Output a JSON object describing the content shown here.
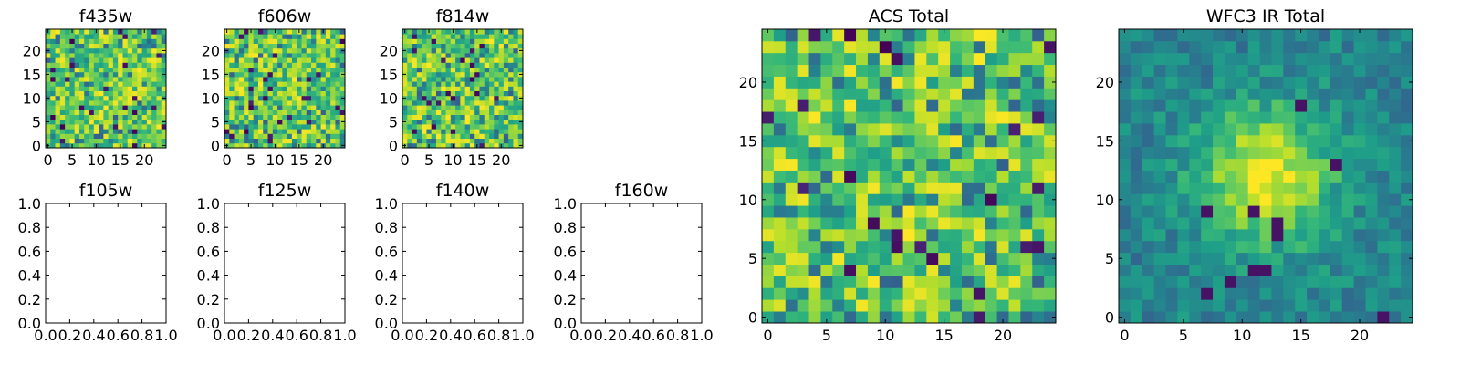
{
  "chart_data": [
    {
      "panel": "f435w",
      "type": "heatmap",
      "title": "f435w",
      "grid": "24x24",
      "colormap": "viridis",
      "xlim": [
        0,
        24
      ],
      "ylim": [
        0,
        24
      ],
      "xticks": [
        "0",
        "5",
        "10",
        "15",
        "20"
      ],
      "yticks": [
        "0",
        "5",
        "10",
        "15",
        "20"
      ],
      "seed": 11
    },
    {
      "panel": "f606w",
      "type": "heatmap",
      "title": "f606w",
      "grid": "24x24",
      "colormap": "viridis",
      "xlim": [
        0,
        24
      ],
      "ylim": [
        0,
        24
      ],
      "xticks": [
        "0",
        "5",
        "10",
        "15",
        "20"
      ],
      "yticks": [
        "0",
        "5",
        "10",
        "15",
        "20"
      ],
      "seed": 23
    },
    {
      "panel": "f814w",
      "type": "heatmap",
      "title": "f814w",
      "grid": "24x24",
      "colormap": "viridis",
      "xlim": [
        0,
        24
      ],
      "ylim": [
        0,
        24
      ],
      "xticks": [
        "0",
        "5",
        "10",
        "15",
        "20"
      ],
      "yticks": [
        "0",
        "5",
        "10",
        "15",
        "20"
      ],
      "seed": 37
    },
    {
      "panel": "f105w",
      "type": "empty",
      "title": "f105w",
      "xlim": [
        0,
        1
      ],
      "ylim": [
        0,
        1
      ],
      "xticks": [
        "0.0",
        "0.2",
        "0.4",
        "0.6",
        "0.8",
        "1.0"
      ],
      "yticks": [
        "0.0",
        "0.2",
        "0.4",
        "0.6",
        "0.8",
        "1.0"
      ]
    },
    {
      "panel": "f125w",
      "type": "empty",
      "title": "f125w",
      "xlim": [
        0,
        1
      ],
      "ylim": [
        0,
        1
      ],
      "xticks": [
        "0.0",
        "0.2",
        "0.4",
        "0.6",
        "0.8",
        "1.0"
      ],
      "yticks": [
        "0.0",
        "0.2",
        "0.4",
        "0.6",
        "0.8",
        "1.0"
      ]
    },
    {
      "panel": "f140w",
      "type": "empty",
      "title": "f140w",
      "xlim": [
        0,
        1
      ],
      "ylim": [
        0,
        1
      ],
      "xticks": [
        "0.0",
        "0.2",
        "0.4",
        "0.6",
        "0.8",
        "1.0"
      ],
      "yticks": [
        "0.0",
        "0.2",
        "0.4",
        "0.6",
        "0.8",
        "1.0"
      ]
    },
    {
      "panel": "f160w",
      "type": "empty",
      "title": "f160w",
      "xlim": [
        0,
        1
      ],
      "ylim": [
        0,
        1
      ],
      "xticks": [
        "0.0",
        "0.2",
        "0.4",
        "0.6",
        "0.8",
        "1.0"
      ],
      "yticks": [
        "0.0",
        "0.2",
        "0.4",
        "0.6",
        "0.8",
        "1.0"
      ]
    },
    {
      "panel": "acs-total",
      "type": "heatmap",
      "title": "ACS Total",
      "grid": "24x24",
      "colormap": "viridis",
      "xlim": [
        0,
        24
      ],
      "ylim": [
        0,
        24
      ],
      "xticks": [
        "0",
        "5",
        "10",
        "15",
        "20"
      ],
      "yticks": [
        "0",
        "5",
        "10",
        "15",
        "20"
      ],
      "seed": 53
    },
    {
      "panel": "wfc3-ir-total",
      "type": "heatmap",
      "title": "WFC3 IR Total",
      "grid": "24x24",
      "colormap": "viridis",
      "xlim": [
        0,
        24
      ],
      "ylim": [
        0,
        24
      ],
      "xticks": [
        "0",
        "5",
        "10",
        "15",
        "20"
      ],
      "yticks": [
        "0",
        "5",
        "10",
        "15",
        "20"
      ],
      "seed": 71,
      "peak_center": [
        12,
        12
      ]
    }
  ],
  "colors": {
    "viridis_low": "#440154",
    "viridis_mid": "#21918c",
    "viridis_high": "#fde725"
  }
}
